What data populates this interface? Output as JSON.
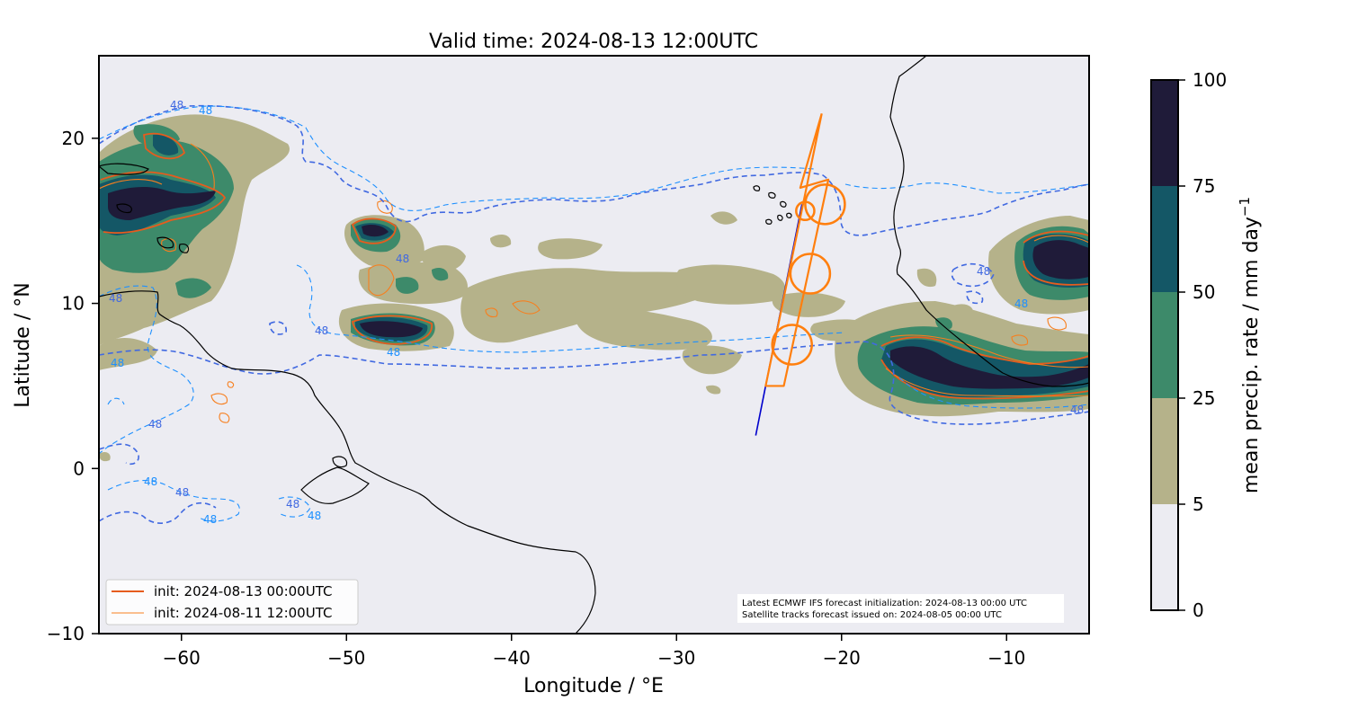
{
  "title": "Valid time: 2024-08-13 12:00UTC",
  "map": {
    "lon_range": [
      -65,
      -5
    ],
    "lat_range": [
      -10,
      25
    ],
    "xlabel": "Longitude / °E",
    "ylabel": "Latitude / °N",
    "x_ticks": [
      -60,
      -50,
      -40,
      -30,
      -20,
      -10
    ],
    "y_ticks": [
      -10,
      0,
      10,
      20
    ],
    "x_tick_labels": [
      "−60",
      "−50",
      "−40",
      "−30",
      "−20",
      "−10"
    ],
    "y_tick_labels": [
      "−10",
      "0",
      "10",
      "20"
    ],
    "background_color": "#ececf2",
    "coastline_color": "#000000"
  },
  "colorbar": {
    "label": "mean precip. rate / mm day",
    "label_superscript": "−1",
    "levels": [
      0,
      5,
      25,
      50,
      75,
      100
    ],
    "tick_labels": [
      "0",
      "5",
      "25",
      "50",
      "75",
      "100"
    ],
    "colors": [
      "#ececf2",
      "#b5b28a",
      "#3d8a6a",
      "#145766",
      "#1f1b39"
    ]
  },
  "legend": {
    "entries": [
      {
        "label": "init: 2024-08-13 00:00UTC",
        "color": "#e65c1e",
        "width": 2
      },
      {
        "label": "init: 2024-08-11 12:00UTC",
        "color": "#f77f1e",
        "width": 1
      }
    ]
  },
  "annotation": {
    "line1": "Latest ECMWF IFS forecast initialization: 2024-08-13 00:00 UTC",
    "line2": "Satellite tracks forecast issued on: 2024-08-05 00:00 UTC"
  },
  "contour_labels": [
    "48",
    "48",
    "48",
    "48",
    "48",
    "48",
    "48",
    "48",
    "48",
    "48",
    "48",
    "48",
    "48",
    "48",
    "48",
    "48"
  ],
  "flight_track": {
    "color": "#ff7f0e",
    "path_lonlat": [
      [
        -21.2,
        21.5
      ],
      [
        -24.6,
        5.0
      ],
      [
        -23.5,
        5.0
      ],
      [
        -20.8,
        17.5
      ],
      [
        -22.5,
        17.0
      ],
      [
        -21.2,
        21.5
      ]
    ],
    "circles": [
      {
        "lon": -21.0,
        "lat": 16.0,
        "r_deg": 1.2
      },
      {
        "lon": -22.2,
        "lat": 15.6,
        "r_deg": 0.55
      },
      {
        "lon": -21.9,
        "lat": 11.8,
        "r_deg": 1.2
      },
      {
        "lon": -23.0,
        "lat": 7.5,
        "r_deg": 1.2
      }
    ]
  },
  "satellite_track": {
    "color": "#0000cc",
    "path_lonlat": [
      [
        -25.2,
        2.0
      ],
      [
        -22.4,
        16.0
      ]
    ]
  },
  "contours": {
    "current_color": "#4169e1",
    "previous_color": "#1e90ff",
    "level": "48"
  }
}
